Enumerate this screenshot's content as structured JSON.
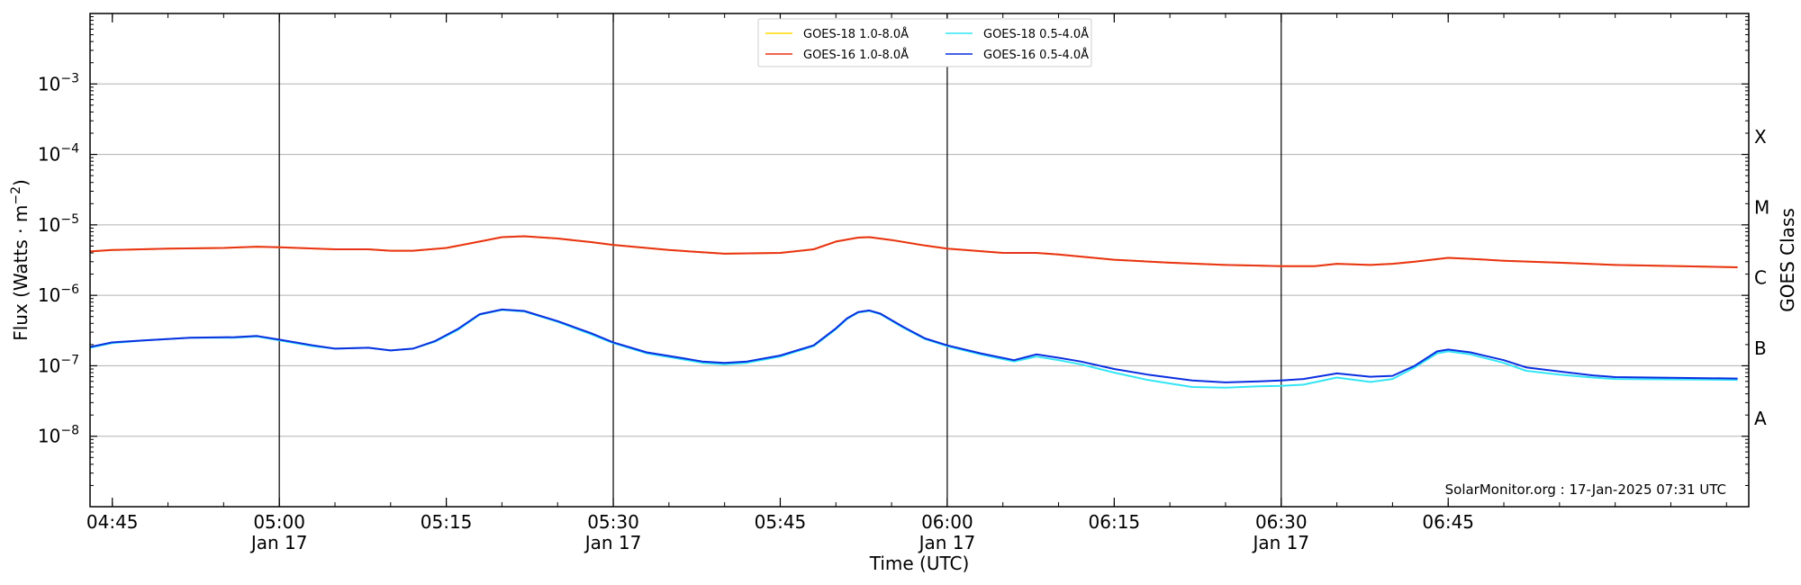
{
  "chart_data": {
    "type": "line",
    "xlabel": "Time (UTC)",
    "ylabel": "Flux (Watts · m",
    "ylabel_exp": "−2",
    "ylabel_close": ")",
    "right_label": "GOES Class",
    "credit": "SolarMonitor.org : 17-Jan-2025 07:31 UTC",
    "y_scale": "log",
    "ylim": [
      1e-09,
      0.01
    ],
    "xlim": [
      "04:43",
      "07:12"
    ],
    "grid": "horizontal at decades",
    "y_ticks": [
      {
        "base": "10",
        "exp": "−3",
        "value": 0.001
      },
      {
        "base": "10",
        "exp": "−4",
        "value": 0.0001
      },
      {
        "base": "10",
        "exp": "−5",
        "value": 1e-05
      },
      {
        "base": "10",
        "exp": "−6",
        "value": 1e-06
      },
      {
        "base": "10",
        "exp": "−7",
        "value": 1e-07
      },
      {
        "base": "10",
        "exp": "−8",
        "value": 1e-08
      }
    ],
    "goes_classes": [
      {
        "label": "X",
        "value": 0.0001778
      },
      {
        "label": "M",
        "value": 1.778e-05
      },
      {
        "label": "C",
        "value": 1.778e-06
      },
      {
        "label": "B",
        "value": 1.778e-07
      },
      {
        "label": "A",
        "value": 1.778e-08
      }
    ],
    "x_ticks": [
      {
        "time": "04:45",
        "label": "04:45",
        "date": ""
      },
      {
        "time": "05:00",
        "label": "05:00",
        "date": "Jan 17"
      },
      {
        "time": "05:15",
        "label": "05:15",
        "date": ""
      },
      {
        "time": "05:30",
        "label": "05:30",
        "date": "Jan 17"
      },
      {
        "time": "05:45",
        "label": "05:45",
        "date": ""
      },
      {
        "time": "06:00",
        "label": "06:00",
        "date": "Jan 17"
      },
      {
        "time": "06:15",
        "label": "06:15",
        "date": ""
      },
      {
        "time": "06:30",
        "label": "06:30",
        "date": "Jan 17"
      },
      {
        "time": "06:45",
        "label": "06:45",
        "date": ""
      }
    ],
    "vlines": [
      "05:00",
      "05:30",
      "06:00",
      "06:30"
    ],
    "legend_position": "top-center",
    "legend": [
      {
        "name": "GOES-18 1.0-8.0Å",
        "color": "#FFD700"
      },
      {
        "name": "GOES-16 1.0-8.0Å",
        "color": "#E8321B"
      },
      {
        "name": "GOES-18 0.5-4.0Å",
        "color": "#33E5F5"
      },
      {
        "name": "GOES-16 0.5-4.0Å",
        "color": "#0A2FE0"
      }
    ],
    "series": [
      {
        "name": "GOES-18 1.0-8.0Å",
        "color": "#FFD700",
        "width": 2,
        "points": [
          [
            "04:43",
            4.2e-06
          ],
          [
            "04:45",
            4.4e-06
          ],
          [
            "04:50",
            4.6e-06
          ],
          [
            "04:55",
            4.7e-06
          ],
          [
            "04:58",
            4.9e-06
          ],
          [
            "05:00",
            4.8e-06
          ],
          [
            "05:05",
            4.5e-06
          ],
          [
            "05:08",
            4.5e-06
          ],
          [
            "05:10",
            4.3e-06
          ],
          [
            "05:12",
            4.3e-06
          ],
          [
            "05:15",
            4.7e-06
          ],
          [
            "05:18",
            5.8e-06
          ],
          [
            "05:20",
            6.7e-06
          ],
          [
            "05:22",
            6.9e-06
          ],
          [
            "05:25",
            6.4e-06
          ],
          [
            "05:28",
            5.7e-06
          ],
          [
            "05:30",
            5.2e-06
          ],
          [
            "05:35",
            4.4e-06
          ],
          [
            "05:40",
            3.9e-06
          ],
          [
            "05:45",
            4e-06
          ],
          [
            "05:48",
            4.5e-06
          ],
          [
            "05:50",
            5.8e-06
          ],
          [
            "05:52",
            6.6e-06
          ],
          [
            "05:53",
            6.7e-06
          ],
          [
            "05:55",
            6.1e-06
          ],
          [
            "05:58",
            5.1e-06
          ],
          [
            "06:00",
            4.6e-06
          ],
          [
            "06:05",
            4e-06
          ],
          [
            "06:08",
            4e-06
          ],
          [
            "06:10",
            3.8e-06
          ],
          [
            "06:15",
            3.2e-06
          ],
          [
            "06:20",
            2.9e-06
          ],
          [
            "06:25",
            2.7e-06
          ],
          [
            "06:30",
            2.6e-06
          ],
          [
            "06:33",
            2.6e-06
          ],
          [
            "06:35",
            2.8e-06
          ],
          [
            "06:38",
            2.7e-06
          ],
          [
            "06:40",
            2.8e-06
          ],
          [
            "06:42",
            3e-06
          ],
          [
            "06:45",
            3.4e-06
          ],
          [
            "06:47",
            3.3e-06
          ],
          [
            "06:50",
            3.1e-06
          ],
          [
            "06:55",
            2.9e-06
          ],
          [
            "07:00",
            2.7e-06
          ],
          [
            "07:11",
            2.5e-06
          ]
        ]
      },
      {
        "name": "GOES-16 1.0-8.0Å",
        "color": "#E8321B",
        "width": 2,
        "points": [
          [
            "04:43",
            4.2e-06
          ],
          [
            "04:45",
            4.4e-06
          ],
          [
            "04:50",
            4.6e-06
          ],
          [
            "04:55",
            4.7e-06
          ],
          [
            "04:58",
            4.9e-06
          ],
          [
            "05:00",
            4.8e-06
          ],
          [
            "05:05",
            4.5e-06
          ],
          [
            "05:08",
            4.5e-06
          ],
          [
            "05:10",
            4.3e-06
          ],
          [
            "05:12",
            4.3e-06
          ],
          [
            "05:15",
            4.7e-06
          ],
          [
            "05:18",
            5.8e-06
          ],
          [
            "05:20",
            6.7e-06
          ],
          [
            "05:22",
            6.9e-06
          ],
          [
            "05:25",
            6.4e-06
          ],
          [
            "05:28",
            5.7e-06
          ],
          [
            "05:30",
            5.2e-06
          ],
          [
            "05:35",
            4.4e-06
          ],
          [
            "05:40",
            3.9e-06
          ],
          [
            "05:45",
            4e-06
          ],
          [
            "05:48",
            4.5e-06
          ],
          [
            "05:50",
            5.8e-06
          ],
          [
            "05:52",
            6.6e-06
          ],
          [
            "05:53",
            6.7e-06
          ],
          [
            "05:55",
            6.1e-06
          ],
          [
            "05:58",
            5.1e-06
          ],
          [
            "06:00",
            4.6e-06
          ],
          [
            "06:05",
            4e-06
          ],
          [
            "06:08",
            4e-06
          ],
          [
            "06:10",
            3.8e-06
          ],
          [
            "06:15",
            3.2e-06
          ],
          [
            "06:20",
            2.9e-06
          ],
          [
            "06:25",
            2.7e-06
          ],
          [
            "06:30",
            2.6e-06
          ],
          [
            "06:33",
            2.6e-06
          ],
          [
            "06:35",
            2.8e-06
          ],
          [
            "06:38",
            2.7e-06
          ],
          [
            "06:40",
            2.8e-06
          ],
          [
            "06:42",
            3e-06
          ],
          [
            "06:45",
            3.4e-06
          ],
          [
            "06:47",
            3.3e-06
          ],
          [
            "06:50",
            3.1e-06
          ],
          [
            "06:55",
            2.9e-06
          ],
          [
            "07:00",
            2.7e-06
          ],
          [
            "07:11",
            2.5e-06
          ]
        ]
      },
      {
        "name": "GOES-18 0.5-4.0Å",
        "color": "#33E5F5",
        "width": 2,
        "points": [
          [
            "04:43",
            1.8e-07
          ],
          [
            "04:45",
            2.1e-07
          ],
          [
            "04:48",
            2.3e-07
          ],
          [
            "04:52",
            2.5e-07
          ],
          [
            "04:56",
            2.5e-07
          ],
          [
            "04:58",
            2.6e-07
          ],
          [
            "05:00",
            2.3e-07
          ],
          [
            "05:03",
            1.9e-07
          ],
          [
            "05:05",
            1.75e-07
          ],
          [
            "05:08",
            1.8e-07
          ],
          [
            "05:10",
            1.65e-07
          ],
          [
            "05:12",
            1.75e-07
          ],
          [
            "05:14",
            2.2e-07
          ],
          [
            "05:16",
            3.2e-07
          ],
          [
            "05:18",
            5.3e-07
          ],
          [
            "05:20",
            6.2e-07
          ],
          [
            "05:22",
            5.9e-07
          ],
          [
            "05:25",
            4.2e-07
          ],
          [
            "05:28",
            2.8e-07
          ],
          [
            "05:30",
            2.1e-07
          ],
          [
            "05:33",
            1.5e-07
          ],
          [
            "05:36",
            1.25e-07
          ],
          [
            "05:38",
            1.1e-07
          ],
          [
            "05:40",
            1.05e-07
          ],
          [
            "05:42",
            1.1e-07
          ],
          [
            "05:45",
            1.35e-07
          ],
          [
            "05:48",
            1.9e-07
          ],
          [
            "05:50",
            3.3e-07
          ],
          [
            "05:51",
            4.6e-07
          ],
          [
            "05:52",
            5.7e-07
          ],
          [
            "05:53",
            6e-07
          ],
          [
            "05:54",
            5.4e-07
          ],
          [
            "05:56",
            3.5e-07
          ],
          [
            "05:58",
            2.4e-07
          ],
          [
            "06:00",
            1.9e-07
          ],
          [
            "06:03",
            1.45e-07
          ],
          [
            "06:06",
            1.15e-07
          ],
          [
            "06:08",
            1.35e-07
          ],
          [
            "06:10",
            1.2e-07
          ],
          [
            "06:12",
            1.05e-07
          ],
          [
            "06:15",
            8e-08
          ],
          [
            "06:18",
            6.3e-08
          ],
          [
            "06:20",
            5.6e-08
          ],
          [
            "06:22",
            5e-08
          ],
          [
            "06:25",
            4.9e-08
          ],
          [
            "06:28",
            5.1e-08
          ],
          [
            "06:30",
            5.2e-08
          ],
          [
            "06:32",
            5.4e-08
          ],
          [
            "06:35",
            6.8e-08
          ],
          [
            "06:38",
            5.9e-08
          ],
          [
            "06:40",
            6.5e-08
          ],
          [
            "06:42",
            9.5e-08
          ],
          [
            "06:44",
            1.5e-07
          ],
          [
            "06:45",
            1.6e-07
          ],
          [
            "06:47",
            1.45e-07
          ],
          [
            "06:50",
            1.1e-07
          ],
          [
            "06:52",
            8.5e-08
          ],
          [
            "06:55",
            7.5e-08
          ],
          [
            "06:58",
            6.8e-08
          ],
          [
            "07:00",
            6.5e-08
          ],
          [
            "07:11",
            6.3e-08
          ]
        ]
      },
      {
        "name": "GOES-16 0.5-4.0Å",
        "color": "#0A2FE0",
        "width": 2,
        "points": [
          [
            "04:43",
            1.85e-07
          ],
          [
            "04:45",
            2.15e-07
          ],
          [
            "04:48",
            2.3e-07
          ],
          [
            "04:52",
            2.5e-07
          ],
          [
            "04:56",
            2.55e-07
          ],
          [
            "04:58",
            2.65e-07
          ],
          [
            "05:00",
            2.35e-07
          ],
          [
            "05:03",
            1.95e-07
          ],
          [
            "05:05",
            1.75e-07
          ],
          [
            "05:08",
            1.8e-07
          ],
          [
            "05:10",
            1.65e-07
          ],
          [
            "05:12",
            1.75e-07
          ],
          [
            "05:14",
            2.25e-07
          ],
          [
            "05:16",
            3.3e-07
          ],
          [
            "05:18",
            5.4e-07
          ],
          [
            "05:20",
            6.3e-07
          ],
          [
            "05:22",
            6e-07
          ],
          [
            "05:25",
            4.3e-07
          ],
          [
            "05:28",
            2.9e-07
          ],
          [
            "05:30",
            2.15e-07
          ],
          [
            "05:33",
            1.55e-07
          ],
          [
            "05:36",
            1.3e-07
          ],
          [
            "05:38",
            1.15e-07
          ],
          [
            "05:40",
            1.1e-07
          ],
          [
            "05:42",
            1.15e-07
          ],
          [
            "05:45",
            1.4e-07
          ],
          [
            "05:48",
            1.95e-07
          ],
          [
            "05:50",
            3.4e-07
          ],
          [
            "05:51",
            4.7e-07
          ],
          [
            "05:52",
            5.8e-07
          ],
          [
            "05:53",
            6.1e-07
          ],
          [
            "05:54",
            5.5e-07
          ],
          [
            "05:56",
            3.6e-07
          ],
          [
            "05:58",
            2.45e-07
          ],
          [
            "06:00",
            1.95e-07
          ],
          [
            "06:03",
            1.5e-07
          ],
          [
            "06:06",
            1.2e-07
          ],
          [
            "06:08",
            1.45e-07
          ],
          [
            "06:10",
            1.3e-07
          ],
          [
            "06:12",
            1.15e-07
          ],
          [
            "06:15",
            9e-08
          ],
          [
            "06:18",
            7.5e-08
          ],
          [
            "06:20",
            6.8e-08
          ],
          [
            "06:22",
            6.2e-08
          ],
          [
            "06:25",
            5.8e-08
          ],
          [
            "06:28",
            6e-08
          ],
          [
            "06:30",
            6.2e-08
          ],
          [
            "06:32",
            6.5e-08
          ],
          [
            "06:35",
            7.8e-08
          ],
          [
            "06:38",
            7e-08
          ],
          [
            "06:40",
            7.2e-08
          ],
          [
            "06:42",
            1e-07
          ],
          [
            "06:44",
            1.6e-07
          ],
          [
            "06:45",
            1.7e-07
          ],
          [
            "06:47",
            1.55e-07
          ],
          [
            "06:50",
            1.2e-07
          ],
          [
            "06:52",
            9.5e-08
          ],
          [
            "06:55",
            8.3e-08
          ],
          [
            "06:58",
            7.3e-08
          ],
          [
            "07:00",
            6.9e-08
          ],
          [
            "07:11",
            6.6e-08
          ]
        ]
      }
    ]
  }
}
